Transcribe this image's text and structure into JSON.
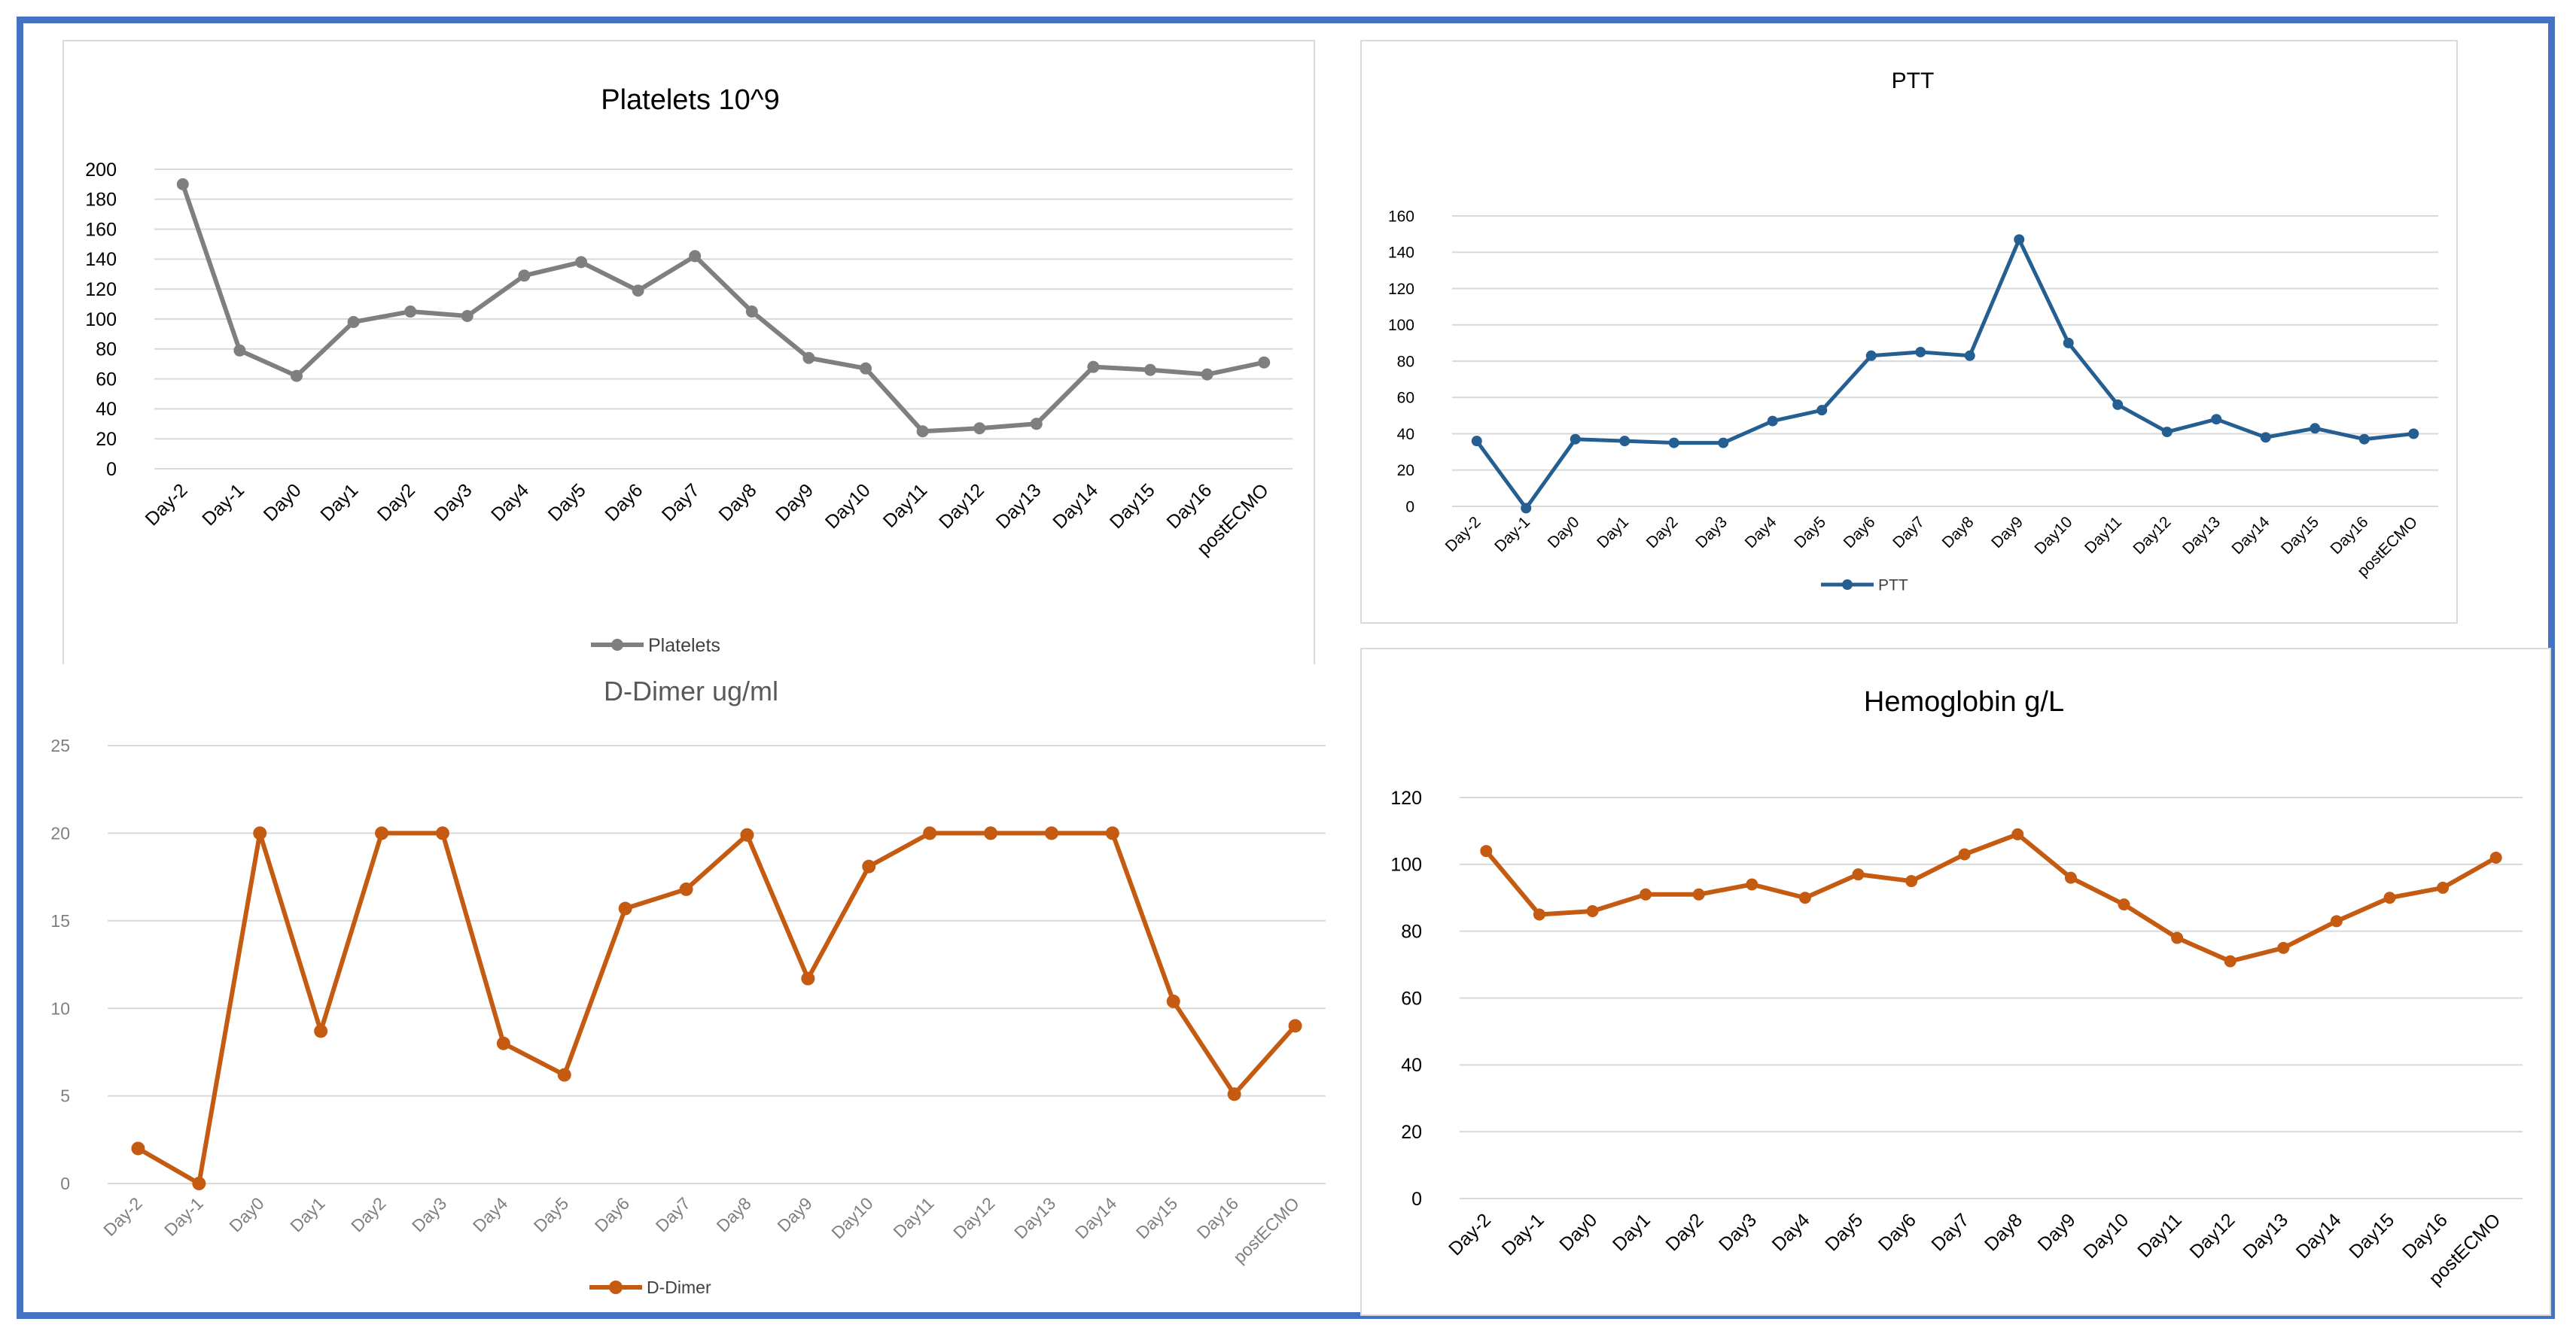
{
  "chart_data": [
    {
      "id": "platelets",
      "type": "line",
      "title": "Platelets 10^9",
      "categories": [
        "Day-2",
        "Day-1",
        "Day0",
        "Day1",
        "Day2",
        "Day3",
        "Day4",
        "Day5",
        "Day6",
        "Day7",
        "Day8",
        "Day9",
        "Day10",
        "Day11",
        "Day12",
        "Day13",
        "Day14",
        "Day15",
        "Day16",
        "postECMO"
      ],
      "series": [
        {
          "name": "Platelets",
          "color": "#7f7f7f",
          "values": [
            190,
            79,
            62,
            98,
            105,
            102,
            129,
            138,
            119,
            142,
            105,
            74,
            67,
            25,
            27,
            30,
            68,
            66,
            63,
            71
          ]
        }
      ],
      "yticks": [
        0,
        20,
        40,
        60,
        80,
        100,
        120,
        140,
        160,
        180,
        200
      ],
      "ylim": [
        0,
        200
      ],
      "legend": "bottom",
      "grid": true,
      "tick_color": "#000000",
      "title_color": "#000000"
    },
    {
      "id": "ptt",
      "type": "line",
      "title": "PTT",
      "categories": [
        "Day-2",
        "Day-1",
        "Day0",
        "Day1",
        "Day2",
        "Day3",
        "Day4",
        "Day5",
        "Day6",
        "Day7",
        "Day8",
        "Day9",
        "Day10",
        "Day11",
        "Day12",
        "Day13",
        "Day14",
        "Day15",
        "Day16",
        "postECMO"
      ],
      "series": [
        {
          "name": "PTT",
          "color": "#255e91",
          "values": [
            36,
            -1,
            37,
            36,
            35,
            35,
            47,
            53,
            83,
            85,
            83,
            147,
            90,
            56,
            41,
            48,
            38,
            43,
            37,
            40
          ]
        }
      ],
      "yticks": [
        0,
        20,
        40,
        60,
        80,
        100,
        120,
        140,
        160
      ],
      "ylim": [
        0,
        160
      ],
      "legend": "bottom",
      "grid": true,
      "tick_color": "#000000",
      "title_color": "#000000"
    },
    {
      "id": "ddimer",
      "type": "line",
      "title": "D-Dimer ug/ml",
      "categories": [
        "Day-2",
        "Day-1",
        "Day0",
        "Day1",
        "Day2",
        "Day3",
        "Day4",
        "Day5",
        "Day6",
        "Day7",
        "Day8",
        "Day9",
        "Day10",
        "Day11",
        "Day12",
        "Day13",
        "Day14",
        "Day15",
        "Day16",
        "postECMO"
      ],
      "series": [
        {
          "name": "D-Dimer",
          "color": "#c55a11",
          "values": [
            2,
            0,
            20,
            8.7,
            20,
            20,
            8,
            6.2,
            15.7,
            16.8,
            19.9,
            11.7,
            18.1,
            20,
            20,
            20,
            20,
            10.4,
            5.1,
            9
          ]
        }
      ],
      "yticks": [
        0,
        5,
        10,
        15,
        20,
        25
      ],
      "ylim": [
        0,
        25
      ],
      "legend": "bottom",
      "grid": true,
      "tick_color": "#7f7f7f",
      "title_color": "#595959"
    },
    {
      "id": "hemoglobin",
      "type": "line",
      "title": "Hemoglobin g/L",
      "categories": [
        "Day-2",
        "Day-1",
        "Day0",
        "Day1",
        "Day2",
        "Day3",
        "Day4",
        "Day5",
        "Day6",
        "Day7",
        "Day8",
        "Day9",
        "Day10",
        "Day11",
        "Day12",
        "Day13",
        "Day14",
        "Day15",
        "Day16",
        "postECMO"
      ],
      "series": [
        {
          "name": "Hemoglobin",
          "color": "#c55a11",
          "values": [
            104,
            85,
            86,
            91,
            91,
            94,
            90,
            97,
            95,
            103,
            109,
            96,
            88,
            78,
            71,
            75,
            83,
            90,
            93,
            102
          ]
        }
      ],
      "yticks": [
        0,
        20,
        40,
        60,
        80,
        100,
        120
      ],
      "ylim": [
        0,
        120
      ],
      "legend": "none",
      "grid": true,
      "tick_color": "#000000",
      "title_color": "#000000"
    }
  ]
}
